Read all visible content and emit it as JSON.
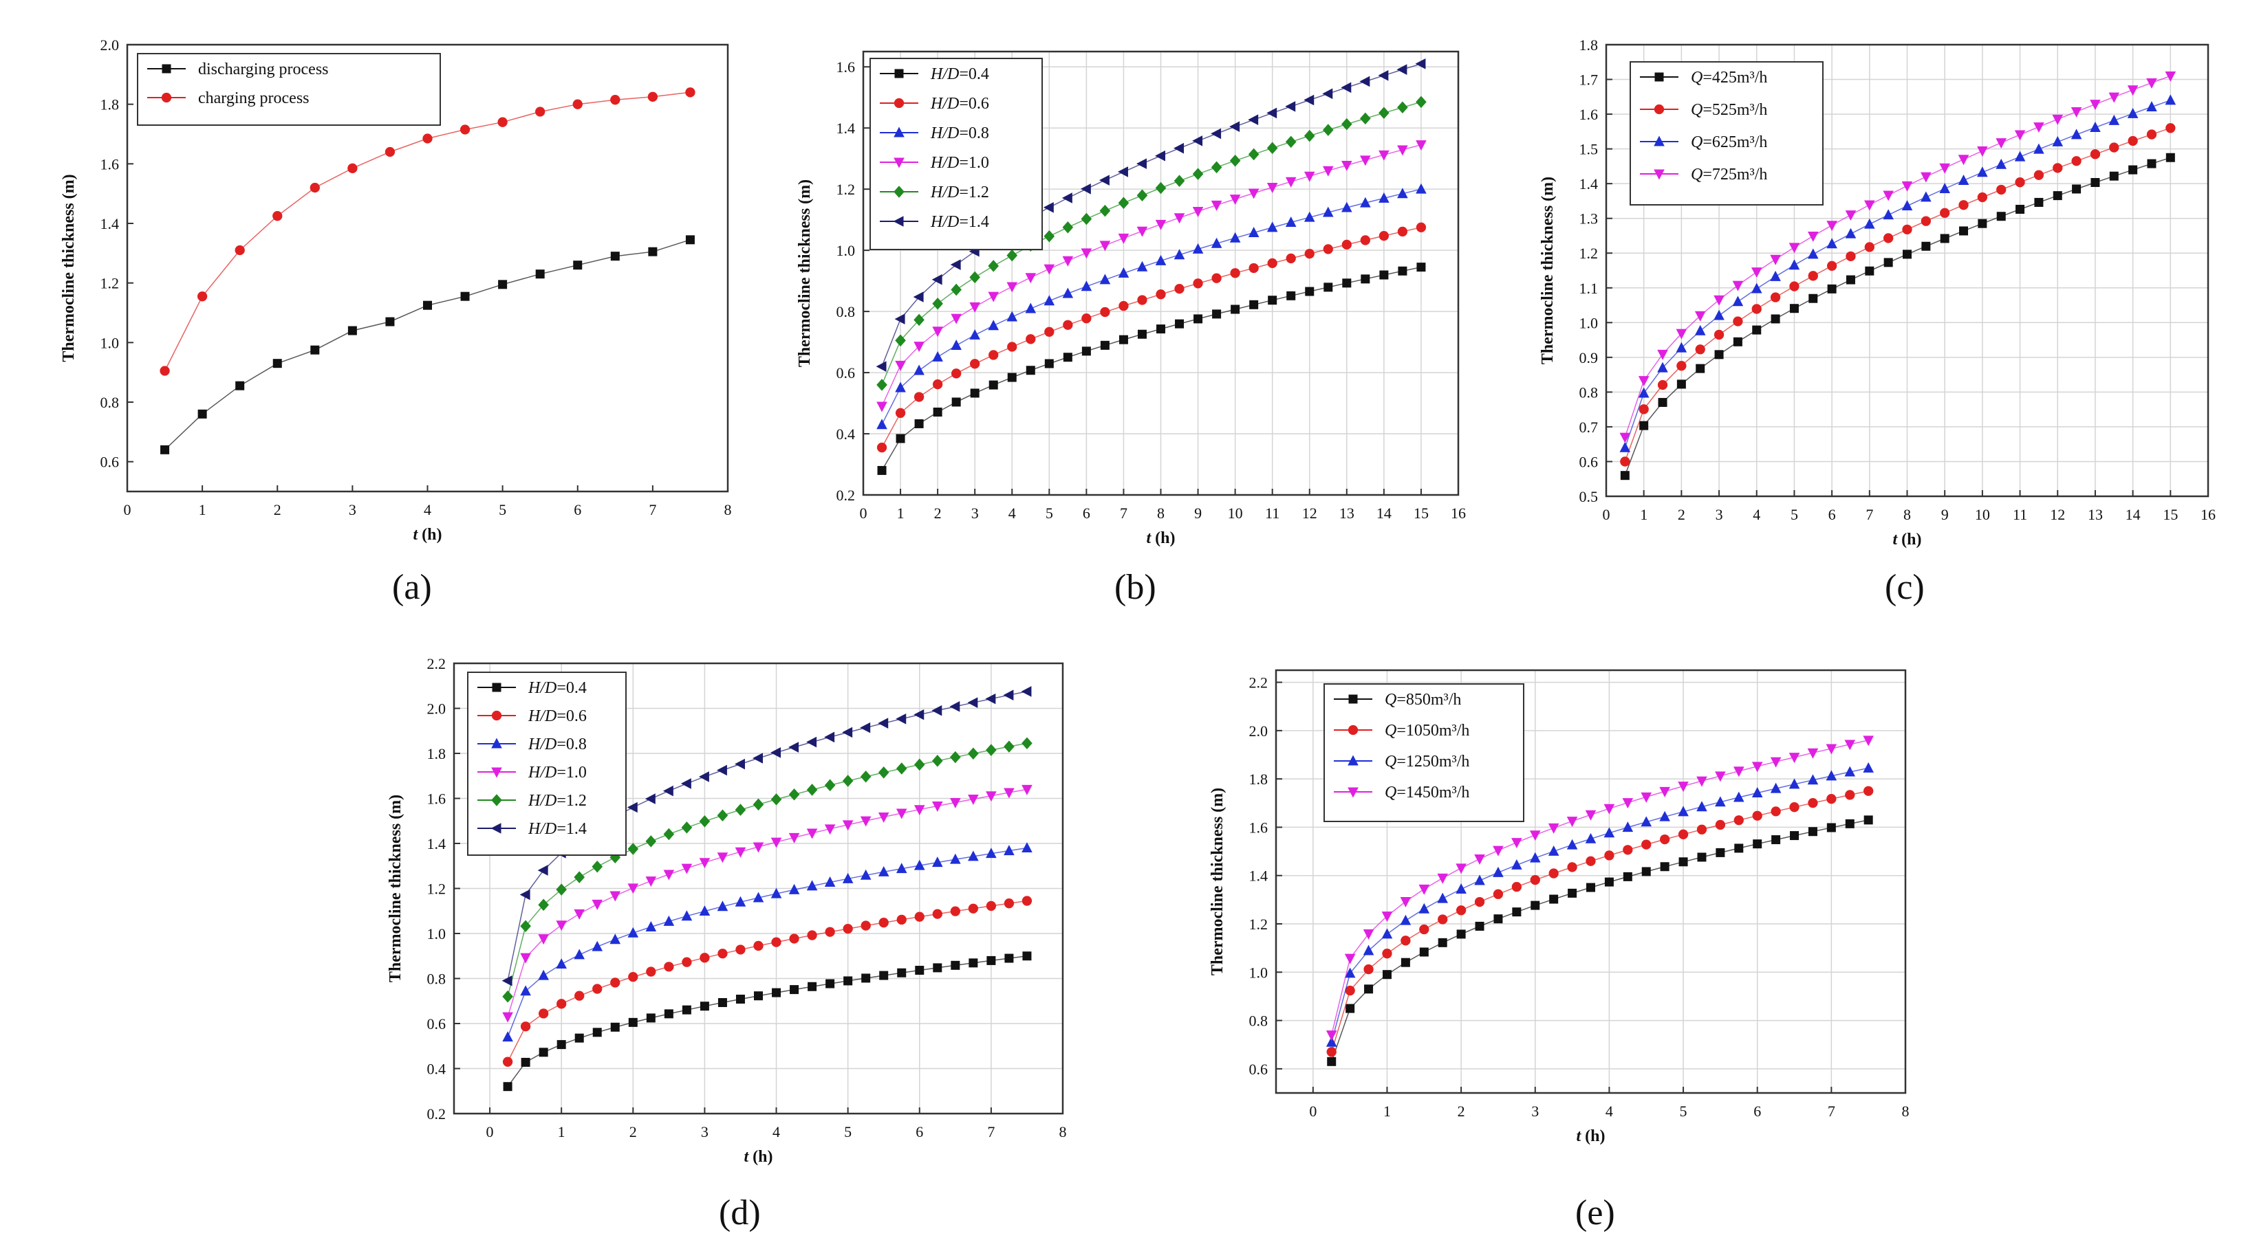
{
  "colors": {
    "black": "#111111",
    "red": "#e02020",
    "blue": "#1f2fd6",
    "magenta": "#e020e0",
    "green": "#1f8a1f",
    "navy": "#1c1c6e"
  },
  "chart_data": [
    {
      "id": "a",
      "caption": "(a)",
      "type": "line",
      "xlabel_var": "t",
      "xlabel_unit": " (h)",
      "ylabel": "Thermocline thickness (m)",
      "xlim": [
        0,
        8
      ],
      "ylim": [
        0.5,
        2.0
      ],
      "xticks": [
        "0",
        "1",
        "2",
        "3",
        "4",
        "5",
        "6",
        "7",
        "8"
      ],
      "yticks": [
        "0.6",
        "0.8",
        "1.0",
        "1.2",
        "1.4",
        "1.6",
        "1.8",
        "2.0"
      ],
      "grid": false,
      "legend_style": "plain",
      "x": [
        0.5,
        1,
        1.5,
        2,
        2.5,
        3,
        3.5,
        4,
        4.5,
        5,
        5.5,
        6,
        6.5,
        7,
        7.5
      ],
      "series": [
        {
          "name": "discharging process",
          "label_var": "",
          "label_rest": "discharging process",
          "color": "#111111",
          "marker": "square",
          "values": [
            0.64,
            0.76,
            0.855,
            0.93,
            0.975,
            1.04,
            1.07,
            1.125,
            1.155,
            1.195,
            1.23,
            1.26,
            1.29,
            1.305,
            1.345
          ]
        },
        {
          "name": "charging process",
          "label_var": "",
          "label_rest": "charging process",
          "color": "#e02020",
          "marker": "circle",
          "values": [
            0.905,
            1.155,
            1.31,
            1.425,
            1.52,
            1.585,
            1.64,
            1.685,
            1.715,
            1.74,
            1.775,
            1.8,
            1.815,
            1.825,
            1.84
          ]
        }
      ]
    },
    {
      "id": "b",
      "caption": "(b)",
      "type": "line",
      "xlabel_var": "t",
      "xlabel_unit": " (h)",
      "ylabel": "Thermocline thickness (m)",
      "xlim": [
        0,
        16
      ],
      "ylim": [
        0.2,
        1.65
      ],
      "xticks": [
        "0",
        "1",
        "2",
        "3",
        "4",
        "5",
        "6",
        "7",
        "8",
        "9",
        "10",
        "11",
        "12",
        "13",
        "14",
        "15",
        "16"
      ],
      "yticks": [
        "0.2",
        "0.4",
        "0.6",
        "0.8",
        "1.0",
        "1.2",
        "1.4",
        "1.6"
      ],
      "grid": true,
      "legend_style": "frame",
      "x": [
        0.5,
        1,
        1.5,
        2,
        2.5,
        3,
        3.5,
        4,
        4.5,
        5,
        5.5,
        6,
        6.5,
        7,
        7.5,
        8,
        8.5,
        9,
        9.5,
        10,
        10.5,
        11,
        11.5,
        12,
        12.5,
        13,
        13.5,
        14,
        14.5,
        15
      ],
      "series": [
        {
          "name": "H/D=0.4",
          "label_var": "H/D",
          "label_rest": "=0.4",
          "color": "#111111",
          "marker": "square",
          "start": 0.28,
          "end": 0.945,
          "power": 0.55
        },
        {
          "name": "H/D=0.6",
          "label_var": "H/D",
          "label_rest": "=0.6",
          "color": "#e02020",
          "marker": "circle",
          "start": 0.355,
          "end": 1.075,
          "power": 0.55
        },
        {
          "name": "H/D=0.8",
          "label_var": "H/D",
          "label_rest": "=0.8",
          "color": "#1f2fd6",
          "marker": "triangle",
          "start": 0.43,
          "end": 1.2,
          "power": 0.55
        },
        {
          "name": "H/D=1.0",
          "label_var": "H/D",
          "label_rest": "=1.0",
          "color": "#e020e0",
          "marker": "triangle-down",
          "start": 0.49,
          "end": 1.345,
          "power": 0.55
        },
        {
          "name": "H/D=1.2",
          "label_var": "H/D",
          "label_rest": "=1.2",
          "color": "#1f8a1f",
          "marker": "diamond",
          "start": 0.56,
          "end": 1.485,
          "power": 0.55
        },
        {
          "name": "H/D=1.4",
          "label_var": "H/D",
          "label_rest": "=1.4",
          "color": "#1c1c6e",
          "marker": "triangle-left",
          "start": 0.62,
          "end": 1.61,
          "power": 0.55
        }
      ]
    },
    {
      "id": "c",
      "caption": "(c)",
      "type": "line",
      "xlabel_var": "t",
      "xlabel_unit": " (h)",
      "ylabel": "Thermocline thickness (m)",
      "xlim": [
        0,
        16
      ],
      "ylim": [
        0.5,
        1.8
      ],
      "xticks": [
        "0",
        "1",
        "2",
        "3",
        "4",
        "5",
        "6",
        "7",
        "8",
        "9",
        "10",
        "11",
        "12",
        "13",
        "14",
        "15",
        "16"
      ],
      "yticks": [
        "0.5",
        "0.6",
        "0.7",
        "0.8",
        "0.9",
        "1.0",
        "1.1",
        "1.2",
        "1.3",
        "1.4",
        "1.5",
        "1.6",
        "1.7",
        "1.8"
      ],
      "grid": true,
      "legend_style": "frame",
      "x": [
        0.5,
        1,
        1.5,
        2,
        2.5,
        3,
        3.5,
        4,
        4.5,
        5,
        5.5,
        6,
        6.5,
        7,
        7.5,
        8,
        8.5,
        9,
        9.5,
        10,
        10.5,
        11,
        11.5,
        12,
        12.5,
        13,
        13.5,
        14,
        14.5,
        15
      ],
      "series": [
        {
          "name": "Q=425m³/h",
          "label_var": "Q",
          "label_rest": "=425m³/h",
          "color": "#111111",
          "marker": "square",
          "start": 0.56,
          "end": 1.475,
          "power": 0.55
        },
        {
          "name": "Q=525m³/h",
          "label_var": "Q",
          "label_rest": "=525m³/h",
          "color": "#e02020",
          "marker": "circle",
          "start": 0.6,
          "end": 1.56,
          "power": 0.55
        },
        {
          "name": "Q=625m³/h",
          "label_var": "Q",
          "label_rest": "=625m³/h",
          "color": "#1f2fd6",
          "marker": "triangle",
          "start": 0.64,
          "end": 1.64,
          "power": 0.55
        },
        {
          "name": "Q=725m³/h",
          "label_var": "Q",
          "label_rest": "=725m³/h",
          "color": "#e020e0",
          "marker": "triangle-down",
          "start": 0.67,
          "end": 1.71,
          "power": 0.55
        }
      ]
    },
    {
      "id": "d",
      "caption": "(d)",
      "type": "line",
      "xlabel_var": "t",
      "xlabel_unit": " (h)",
      "ylabel": "Thermocline thickness (m)",
      "xlim": [
        -0.5,
        8
      ],
      "ylim": [
        0.2,
        2.2
      ],
      "xticks": [
        "0",
        "1",
        "2",
        "3",
        "4",
        "5",
        "6",
        "7",
        "8"
      ],
      "yticks": [
        "0.2",
        "0.4",
        "0.6",
        "0.8",
        "1.0",
        "1.2",
        "1.4",
        "1.6",
        "1.8",
        "2.0",
        "2.2"
      ],
      "grid": true,
      "legend_style": "frame",
      "x": [
        0.25,
        0.5,
        0.75,
        1,
        1.25,
        1.5,
        1.75,
        2,
        2.25,
        2.5,
        2.75,
        3,
        3.25,
        3.5,
        3.75,
        4,
        4.25,
        4.5,
        4.75,
        5,
        5.25,
        5.5,
        5.75,
        6,
        6.25,
        6.5,
        6.75,
        7,
        7.25,
        7.5
      ],
      "series": [
        {
          "name": "H/D=0.4",
          "label_var": "H/D",
          "label_rest": "=0.4",
          "color": "#111111",
          "marker": "square",
          "start": 0.32,
          "end": 0.9,
          "power": 0.5
        },
        {
          "name": "H/D=0.6",
          "label_var": "H/D",
          "label_rest": "=0.6",
          "color": "#e02020",
          "marker": "circle",
          "start": 0.43,
          "end": 1.145,
          "power": 0.45
        },
        {
          "name": "H/D=0.8",
          "label_var": "H/D",
          "label_rest": "=0.8",
          "color": "#1f2fd6",
          "marker": "triangle",
          "start": 0.54,
          "end": 1.38,
          "power": 0.42
        },
        {
          "name": "H/D=1.0",
          "label_var": "H/D",
          "label_rest": "=1.0",
          "color": "#e020e0",
          "marker": "triangle-down",
          "start": 0.63,
          "end": 1.64,
          "power": 0.4
        },
        {
          "name": "H/D=1.2",
          "label_var": "H/D",
          "label_rest": "=1.2",
          "color": "#1f8a1f",
          "marker": "diamond",
          "start": 0.72,
          "end": 1.845,
          "power": 0.38
        },
        {
          "name": "H/D=1.4",
          "label_var": "H/D",
          "label_rest": "=1.4",
          "color": "#1c1c6e",
          "marker": "triangle-left",
          "start": 0.79,
          "end": 2.075,
          "power": 0.36
        }
      ]
    },
    {
      "id": "e",
      "caption": "(e)",
      "type": "line",
      "xlabel_var": "t",
      "xlabel_unit": " (h)",
      "ylabel": "Thermocline thickness (m)",
      "xlim": [
        -0.5,
        8
      ],
      "ylim": [
        0.5,
        2.25
      ],
      "xticks": [
        "0",
        "1",
        "2",
        "3",
        "4",
        "5",
        "6",
        "7",
        "8"
      ],
      "yticks": [
        "0.6",
        "0.8",
        "1.0",
        "1.2",
        "1.4",
        "1.6",
        "1.8",
        "2.0",
        "2.2"
      ],
      "grid": true,
      "legend_style": "frame",
      "x": [
        0.25,
        0.5,
        0.75,
        1,
        1.25,
        1.5,
        1.75,
        2,
        2.25,
        2.5,
        2.75,
        3,
        3.25,
        3.5,
        3.75,
        4,
        4.25,
        4.5,
        4.75,
        5,
        5.25,
        5.5,
        5.75,
        6,
        6.25,
        6.5,
        6.75,
        7,
        7.25,
        7.5
      ],
      "series": [
        {
          "name": "Q=850m³/h",
          "label_var": "Q",
          "label_rest": "=850m³/h",
          "color": "#111111",
          "marker": "square",
          "start": 0.63,
          "end": 1.63,
          "power": 0.45
        },
        {
          "name": "Q=1050m³/h",
          "label_var": "Q",
          "label_rest": "=1050m³/h",
          "color": "#e02020",
          "marker": "circle",
          "start": 0.67,
          "end": 1.75,
          "power": 0.43
        },
        {
          "name": "Q=1250m³/h",
          "label_var": "Q",
          "label_rest": "=1250m³/h",
          "color": "#1f2fd6",
          "marker": "triangle",
          "start": 0.71,
          "end": 1.845,
          "power": 0.41
        },
        {
          "name": "Q=1450m³/h",
          "label_var": "Q",
          "label_rest": "=1450m³/h",
          "color": "#e020e0",
          "marker": "triangle-down",
          "start": 0.74,
          "end": 1.96,
          "power": 0.4
        }
      ]
    }
  ]
}
